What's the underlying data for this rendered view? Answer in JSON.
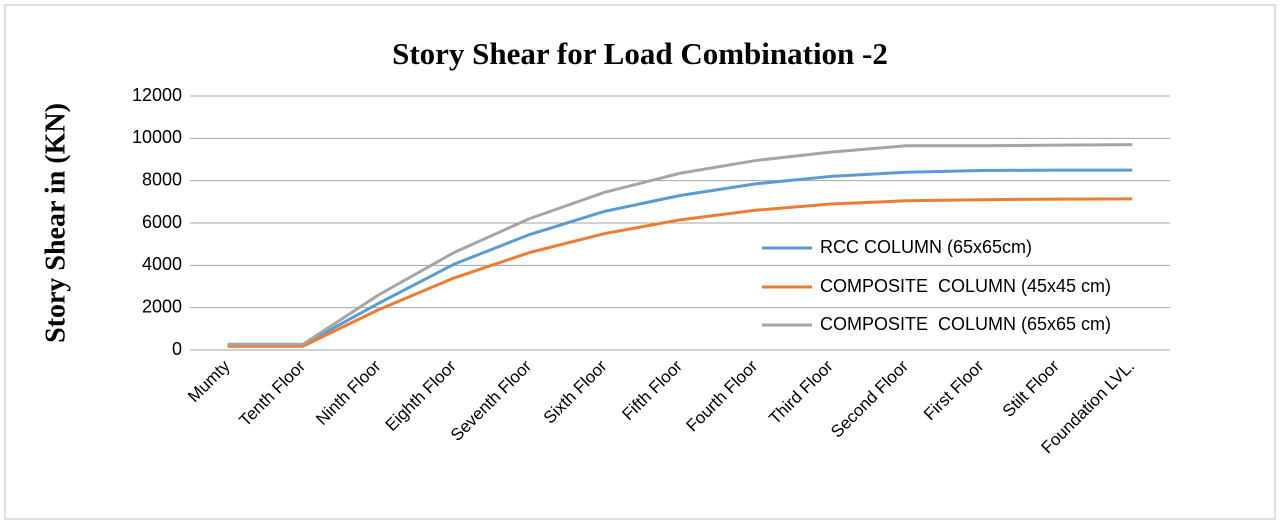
{
  "chart_data": {
    "type": "line",
    "title": "Story Shear for Load Combination -2",
    "y_label": "Story Shear in (KN)",
    "categories": [
      "Mumty",
      "Tenth Floor",
      "Ninth Floor",
      "Eighth Floor",
      "Seventh Floor",
      "Sixth Floor",
      "Fifth Floor",
      "Fourth Floor",
      "Third Floor",
      "Second Floor",
      "First Floor",
      "Stilt Floor",
      "Foundation LVL."
    ],
    "series": [
      {
        "name": "RCC COLUMN (65x65cm)",
        "color": "#5b9bd5",
        "values": [
          250,
          250,
          2200,
          4050,
          5450,
          6550,
          7300,
          7850,
          8200,
          8400,
          8480,
          8500,
          8500
        ]
      },
      {
        "name": "COMPOSITE  COLUMN (45x45 cm)",
        "color": "#ed7d31",
        "values": [
          180,
          180,
          1900,
          3400,
          4600,
          5500,
          6150,
          6600,
          6900,
          7050,
          7100,
          7130,
          7140
        ]
      },
      {
        "name": "COMPOSITE  COLUMN (65x65 cm)",
        "color": "#a5a5a5",
        "values": [
          270,
          270,
          2600,
          4600,
          6200,
          7450,
          8350,
          8950,
          9350,
          9650,
          9650,
          9680,
          9700
        ]
      }
    ],
    "ylim": [
      0,
      12000
    ],
    "yticks": [
      0,
      2000,
      4000,
      6000,
      8000,
      10000,
      12000
    ],
    "grid": true,
    "legend": "right"
  }
}
